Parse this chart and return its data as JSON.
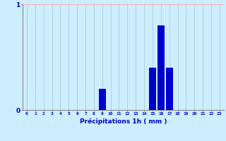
{
  "categories": [
    0,
    1,
    2,
    3,
    4,
    5,
    6,
    7,
    8,
    9,
    10,
    11,
    12,
    13,
    14,
    15,
    16,
    17,
    18,
    19,
    20,
    21,
    22,
    23
  ],
  "values": [
    0,
    0,
    0,
    0,
    0,
    0,
    0,
    0,
    0,
    0.2,
    0,
    0,
    0,
    0,
    0,
    0.4,
    0.8,
    0.4,
    0,
    0,
    0,
    0,
    0,
    0
  ],
  "bar_color": "#0000cc",
  "background_color": "#cceeff",
  "grid_color_h": "#ffb0b0",
  "grid_color_v": "#aacccc",
  "xlabel": "Précipitations 1h ( mm )",
  "xlabel_color": "#0000bb",
  "tick_color": "#0000bb",
  "ylim": [
    0,
    1.0
  ],
  "yticks": [
    0,
    1
  ],
  "bar_width": 0.85,
  "figsize": [
    3.2,
    2.0
  ],
  "dpi": 100
}
